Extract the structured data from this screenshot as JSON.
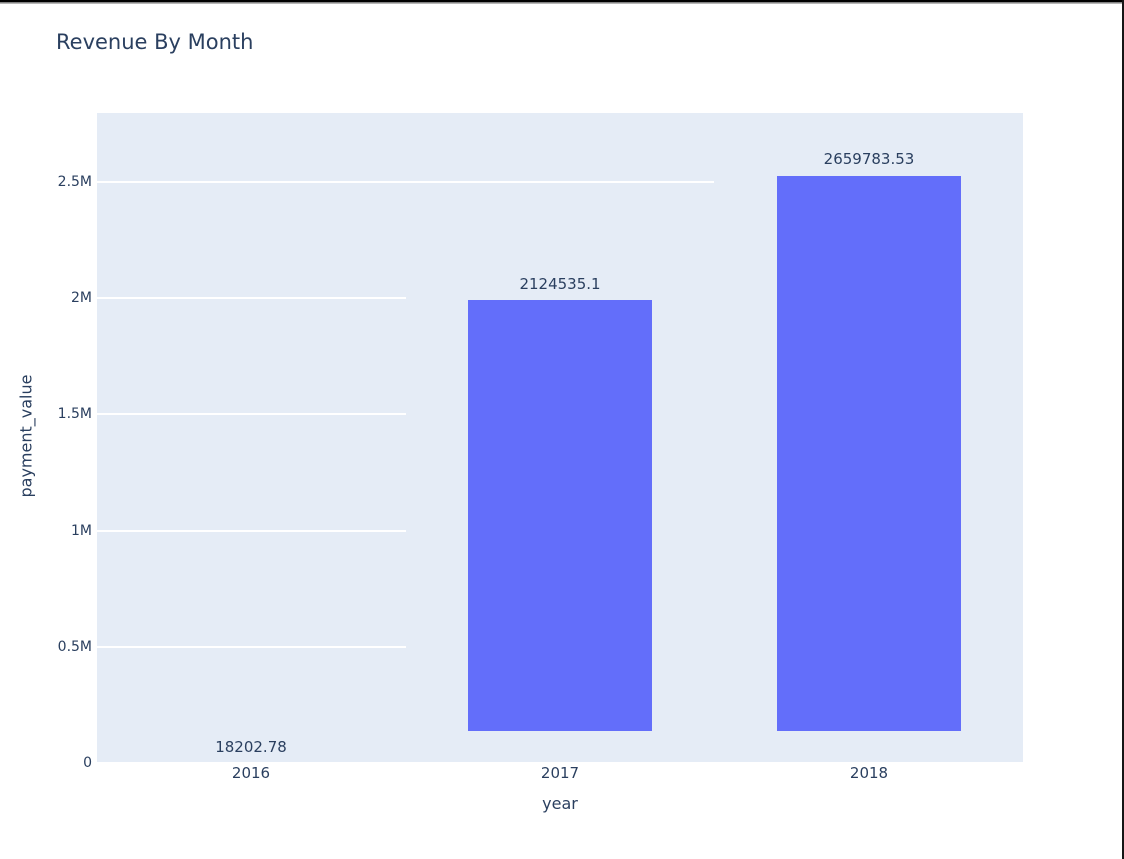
{
  "chart_data": {
    "type": "bar",
    "title": "Revenue By Month",
    "xlabel": "year",
    "ylabel": "payment_value",
    "categories": [
      "2016",
      "2017",
      "2018"
    ],
    "values": [
      18202.78,
      2124535.1,
      2659783.53
    ],
    "bar_labels": [
      "18202.78",
      "2124535.1",
      "2659783.53"
    ],
    "ytick_labels": [
      "0",
      "0.5M",
      "1M",
      "1.5M",
      "2M",
      "2.5M"
    ],
    "ytick_values": [
      0,
      500000,
      1000000,
      1500000,
      2000000,
      2500000
    ],
    "ylim": [
      0,
      2800000
    ],
    "grid": true,
    "legend_position": "none",
    "bar_color": "#636efa",
    "plot_bg_color": "#e5ecf6",
    "grid_color": "#ffffff",
    "text_color": "#2a3f5f"
  }
}
